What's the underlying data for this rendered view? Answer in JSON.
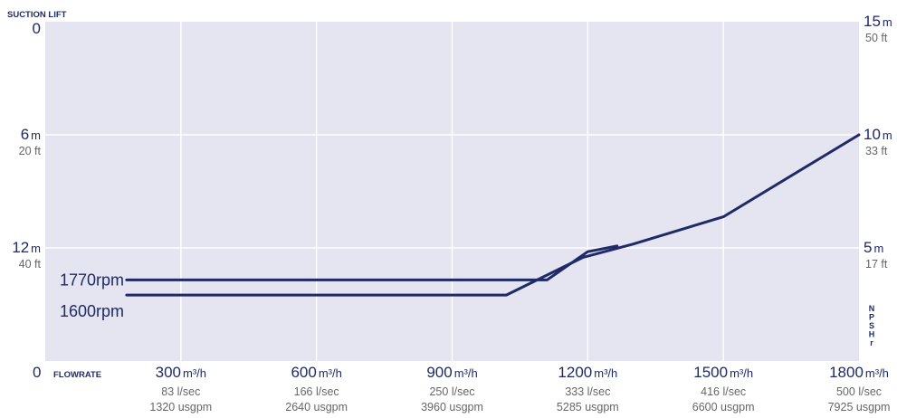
{
  "chart_data": {
    "type": "line",
    "colors": {
      "plot_bg": "#e4e5f0",
      "grid": "#ffffff",
      "line": "#1f2a66",
      "text": "#1f2a66",
      "subtext": "#666666"
    },
    "grid": true,
    "left_axis_title": "SUCTION LIFT",
    "bottom_axis_title": "FLOWRATE",
    "right_axis_title": [
      "N",
      "P",
      "S",
      "H",
      "r"
    ],
    "origin_label": "0",
    "x_ticks": [
      {
        "value": 300,
        "main": "300",
        "unit": "m³/h",
        "sub1": "83 l/sec",
        "sub2": "1320 usgpm"
      },
      {
        "value": 600,
        "main": "600",
        "unit": "m³/h",
        "sub1": "166 l/sec",
        "sub2": "2640 usgpm"
      },
      {
        "value": 900,
        "main": "900",
        "unit": "m³/h",
        "sub1": "250 l/sec",
        "sub2": "3960 usgpm"
      },
      {
        "value": 1200,
        "main": "1200",
        "unit": "m³/h",
        "sub1": "333 l/sec",
        "sub2": "5285 usgpm"
      },
      {
        "value": 1500,
        "main": "1500",
        "unit": "m³/h",
        "sub1": "416 l/sec",
        "sub2": "6600 usgpm"
      },
      {
        "value": 1800,
        "main": "1800",
        "unit": "m³/h",
        "sub1": "500 l/sec",
        "sub2": "7925 usgpm"
      }
    ],
    "x_range": [
      0,
      1800
    ],
    "left_ticks": [
      {
        "value": 0,
        "main": "0",
        "unit": "",
        "sub": ""
      },
      {
        "value": 6,
        "main": "6",
        "unit": "m",
        "sub": "20 ft"
      },
      {
        "value": 12,
        "main": "12",
        "unit": "m",
        "sub": "40 ft"
      }
    ],
    "left_range": [
      0,
      18
    ],
    "right_ticks": [
      {
        "value": 15,
        "main": "15",
        "unit": "m",
        "sub": "50 ft"
      },
      {
        "value": 10,
        "main": "10",
        "unit": "m",
        "sub": "33 ft"
      },
      {
        "value": 5,
        "main": "5",
        "unit": "m",
        "sub": "17 ft"
      }
    ],
    "right_range": [
      15,
      0
    ],
    "series": [
      {
        "name": "1770rpm",
        "axis": "left",
        "points": [
          [
            180,
            13.7
          ],
          [
            1110,
            13.7
          ],
          [
            1200,
            12.2
          ],
          [
            1265,
            11.9
          ]
        ]
      },
      {
        "name": "1600rpm",
        "axis": "left",
        "points": [
          [
            180,
            14.5
          ],
          [
            1020,
            14.5
          ],
          [
            1190,
            12.5
          ],
          [
            1300,
            11.8
          ],
          [
            1500,
            10.35
          ],
          [
            1800,
            6.0
          ]
        ]
      }
    ]
  }
}
